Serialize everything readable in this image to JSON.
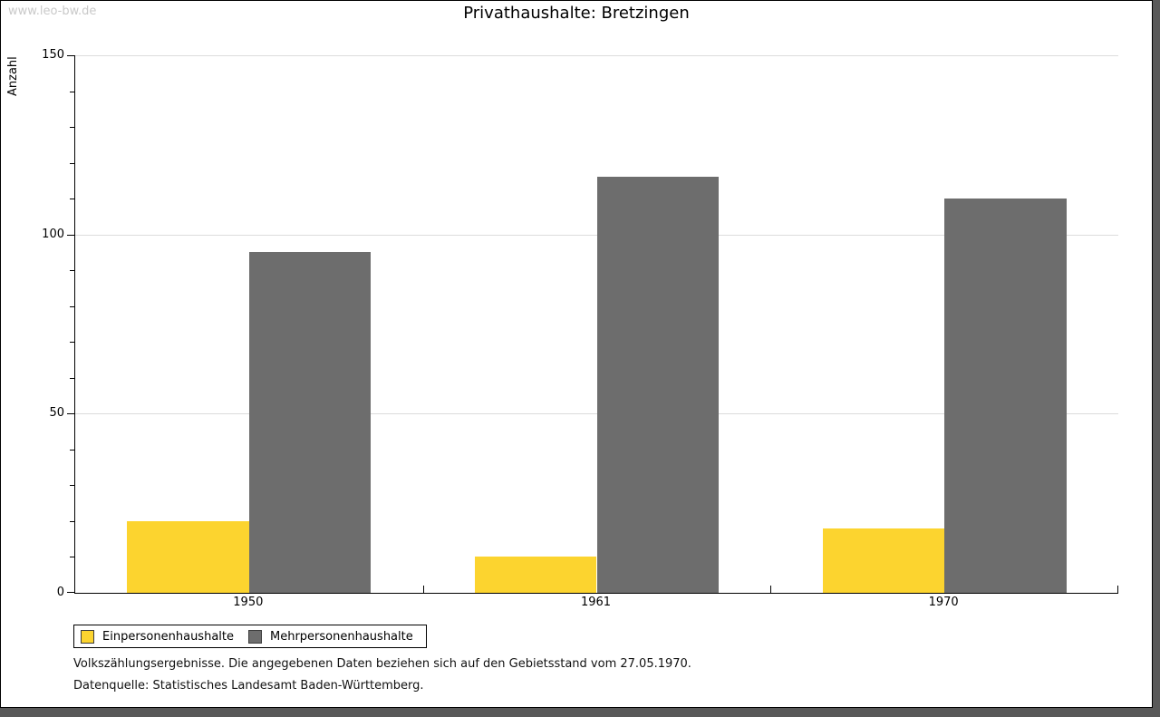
{
  "watermark": "www.leo-bw.de",
  "title": "Privathaushalte: Bretzingen",
  "chart_data": {
    "type": "bar",
    "title": "Privathaushalte: Bretzingen",
    "categories": [
      "1950",
      "1961",
      "1970"
    ],
    "series": [
      {
        "name": "Einpersonenhaushalte",
        "color": "#FCD42F",
        "values": [
          20,
          10,
          18
        ]
      },
      {
        "name": "Mehrpersonenhaushalte",
        "color": "#6D6D6D",
        "values": [
          95,
          116,
          110
        ]
      }
    ],
    "xlabel": "",
    "ylabel": "Anzahl",
    "ylim": [
      0,
      150
    ],
    "yticks": [
      0,
      50,
      100,
      150
    ],
    "minor_tick_step": 10,
    "grid": true,
    "legend_position": "bottom-left",
    "colors": {
      "bar_yellow": "#FCD42F",
      "bar_gray": "#6D6D6D",
      "gridline": "#dcdcdc",
      "axis": "#000000",
      "watermark": "#c9c9c9",
      "frame_shadow": "#595959"
    }
  },
  "notes": [
    "Volkszählungsergebnisse. Die angegebenen Daten beziehen sich auf den Gebietsstand vom 27.05.1970.",
    "Datenquelle: Statistisches Landesamt Baden-Württemberg."
  ]
}
